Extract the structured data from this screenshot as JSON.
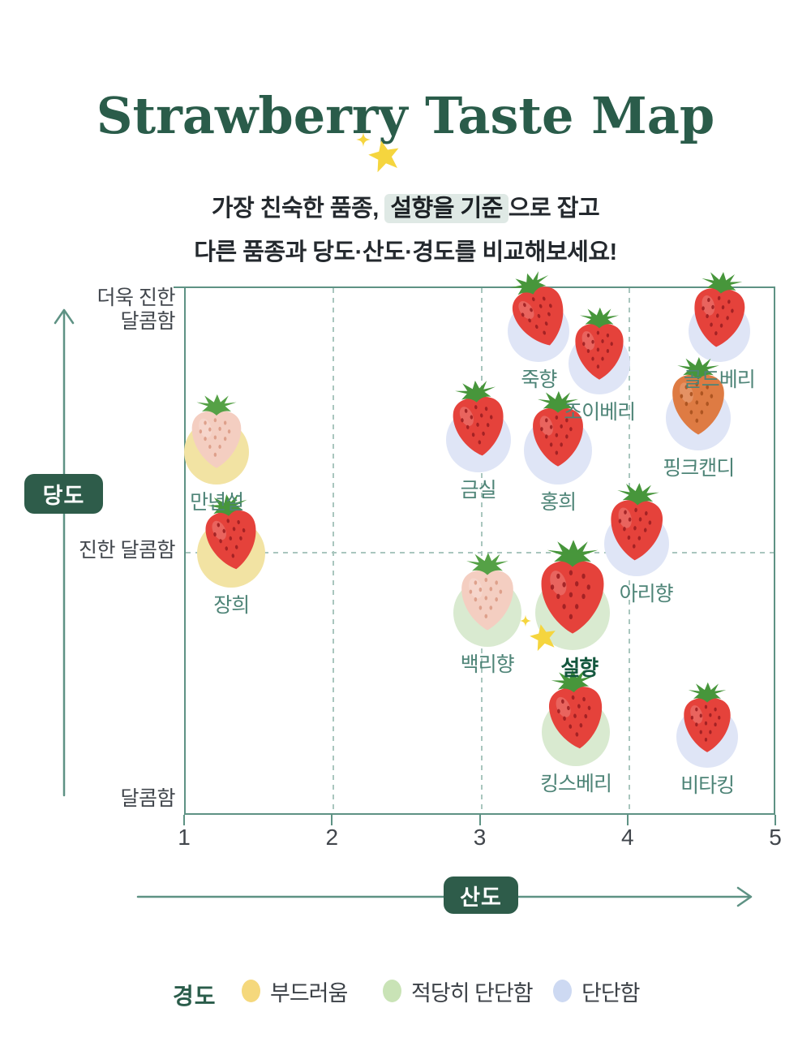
{
  "header": {
    "title": "Strawberry Taste Map",
    "subtitle_line1_prefix": "가장 친숙한 품종, ",
    "subtitle_line1_highlight": "설향을 기준",
    "subtitle_line1_suffix": "으로 잡고",
    "subtitle_line2": "다른 품종과 당도·산도·경도를 비교해보세요!"
  },
  "colors": {
    "accent_green": "#2a5c4a",
    "axis_line": "#5e9284",
    "grid_dash": "#a9c6be",
    "badge_bg": "#2e5c4a",
    "badge_text": "#ffffff",
    "highlight_bg": "#dfe9e5",
    "label_green": "#4e8477",
    "focus_label_green": "#14573e",
    "star_yellow": "#f5d53e",
    "tick_text": "#41464c"
  },
  "legend": {
    "title": "경도",
    "items": [
      {
        "key": "soft",
        "label": "부드러움",
        "dot_color": "#f5d87c",
        "circle_color": "#f2e3a3"
      },
      {
        "key": "medium",
        "label": "적당히 단단함",
        "dot_color": "#c9e3b6",
        "circle_color": "#d9ead0"
      },
      {
        "key": "firm",
        "label": "단단함",
        "dot_color": "#cdd9f2",
        "circle_color": "#dfe5f6"
      }
    ]
  },
  "chart_data": {
    "type": "scatter",
    "title": "Strawberry Taste Map",
    "x_axis": {
      "label": "산도",
      "range": [
        1,
        5
      ],
      "ticks": [
        1,
        2,
        3,
        4,
        5
      ],
      "grid_ticks": [
        2,
        3,
        4
      ]
    },
    "y_axis": {
      "label": "당도",
      "ticks": [
        {
          "lines": [
            "더욱 진한",
            "달콤함"
          ],
          "pct": 95.5,
          "dash": false
        },
        {
          "lines": [
            "진한 달콤함"
          ],
          "pct": 50,
          "dash": true
        },
        {
          "lines": [
            "달콤함"
          ],
          "pct": 3,
          "dash": false
        }
      ]
    },
    "berry_styles": {
      "red": {
        "body": "#e5423b",
        "seed": "#9c1f22",
        "leaf": "#47963b"
      },
      "pale": {
        "body": "#f4cec1",
        "seed": "#dc9b85",
        "leaf": "#55a146"
      },
      "orange": {
        "body": "#de7b43",
        "seed": "#a8511e",
        "leaf": "#47963b"
      }
    },
    "points": [
      {
        "id": "manyeonseol",
        "name": "만년설",
        "acidity": 1.22,
        "sweetness_pct": 68.7,
        "hardness": "soft",
        "berry": "pale",
        "size": 82,
        "tilt": 0,
        "r": 40
      },
      {
        "id": "janghui",
        "name": "장희",
        "acidity": 1.32,
        "sweetness_pct": 49.5,
        "hardness": "soft",
        "berry": "red",
        "size": 84,
        "tilt": -8,
        "r": 42
      },
      {
        "id": "geumsil",
        "name": "금실",
        "acidity": 2.99,
        "sweetness_pct": 71.0,
        "hardness": "firm",
        "berry": "red",
        "size": 84,
        "tilt": -6,
        "r": 40
      },
      {
        "id": "jukhyang",
        "name": "죽향",
        "acidity": 3.4,
        "sweetness_pct": 91.6,
        "hardness": "firm",
        "berry": "red",
        "size": 84,
        "tilt": -18,
        "r": 38
      },
      {
        "id": "joyberry",
        "name": "조이베리",
        "acidity": 3.81,
        "sweetness_pct": 85.4,
        "hardness": "firm",
        "berry": "red",
        "size": 80,
        "tilt": 0,
        "r": 38
      },
      {
        "id": "goldberry",
        "name": "골드베리",
        "acidity": 4.62,
        "sweetness_pct": 91.6,
        "hardness": "firm",
        "berry": "red",
        "size": 84,
        "tilt": 5,
        "r": 38
      },
      {
        "id": "pinkcandy",
        "name": "핑크캔디",
        "acidity": 4.48,
        "sweetness_pct": 75.1,
        "hardness": "firm",
        "berry": "orange",
        "size": 86,
        "tilt": 0,
        "r": 40
      },
      {
        "id": "honghui",
        "name": "홍희",
        "acidity": 3.53,
        "sweetness_pct": 69.0,
        "hardness": "firm",
        "berry": "red",
        "size": 84,
        "tilt": 0,
        "r": 42
      },
      {
        "id": "arihyang",
        "name": "아리향",
        "acidity": 4.06,
        "sweetness_pct": 51.3,
        "hardness": "firm",
        "berry": "red",
        "size": 86,
        "tilt": 3,
        "r": 40,
        "label_dx": 12
      },
      {
        "id": "baekrihyang",
        "name": "백리향",
        "acidity": 3.05,
        "sweetness_pct": 38.2,
        "hardness": "medium",
        "berry": "pale",
        "size": 86,
        "tilt": 0,
        "r": 42
      },
      {
        "id": "seolhyang",
        "name": "설향",
        "acidity": 3.63,
        "sweetness_pct": 38.2,
        "hardness": "medium",
        "berry": "red",
        "size": 104,
        "tilt": 0,
        "r": 46,
        "label_dx": 8,
        "highlight": true
      },
      {
        "id": "kingsberry",
        "name": "킹스베리",
        "acidity": 3.65,
        "sweetness_pct": 15.7,
        "hardness": "medium",
        "berry": "red",
        "size": 88,
        "tilt": -6,
        "r": 42
      },
      {
        "id": "vitaking",
        "name": "비타킹",
        "acidity": 4.54,
        "sweetness_pct": 14.7,
        "hardness": "firm",
        "berry": "red",
        "size": 78,
        "tilt": 0,
        "r": 38
      }
    ]
  }
}
